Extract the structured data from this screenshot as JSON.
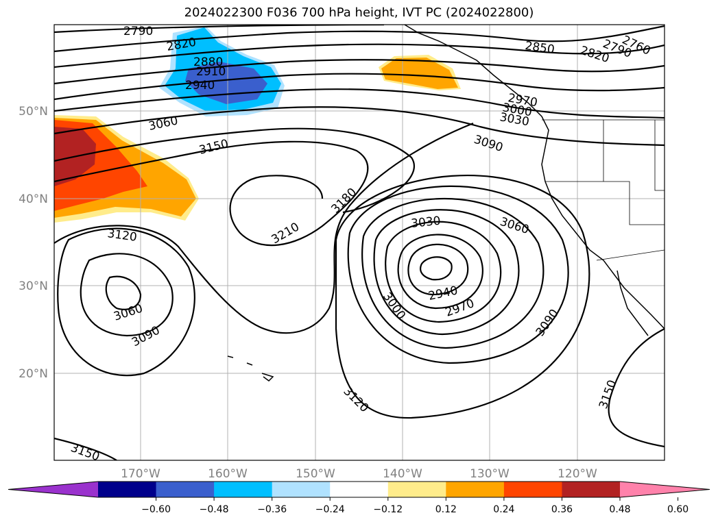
{
  "title": "2024022300 F036 700 hPa height, IVT PC (2024022800)",
  "lat_labels": [
    "50°N",
    "40°N",
    "30°N",
    "20°N"
  ],
  "lon_labels": [
    "170°W",
    "160°W",
    "150°W",
    "140°W",
    "130°W",
    "120°W"
  ],
  "colorbar": {
    "ticks": [
      "−0.60",
      "−0.48",
      "−0.36",
      "−0.24",
      "−0.12",
      "0.12",
      "0.24",
      "0.36",
      "0.48",
      "0.60"
    ],
    "colors": [
      "#9a32cd",
      "#00008b",
      "#3a5fcd",
      "#00bfff",
      "#b0e2ff",
      "#ffffff",
      "#ffec8b",
      "#ffa500",
      "#ff4500",
      "#b22222",
      "#ff82ab"
    ]
  },
  "contour_labels": [
    "2790",
    "2820",
    "2880",
    "2910",
    "2940",
    "2850",
    "2820",
    "2790",
    "2760",
    "2970",
    "3000",
    "3030",
    "3060",
    "3150",
    "3090",
    "3180",
    "3210",
    "3120",
    "3060",
    "3090",
    "3030",
    "3060",
    "3000",
    "2940",
    "2970",
    "3090",
    "3120",
    "3150",
    "3150"
  ]
}
